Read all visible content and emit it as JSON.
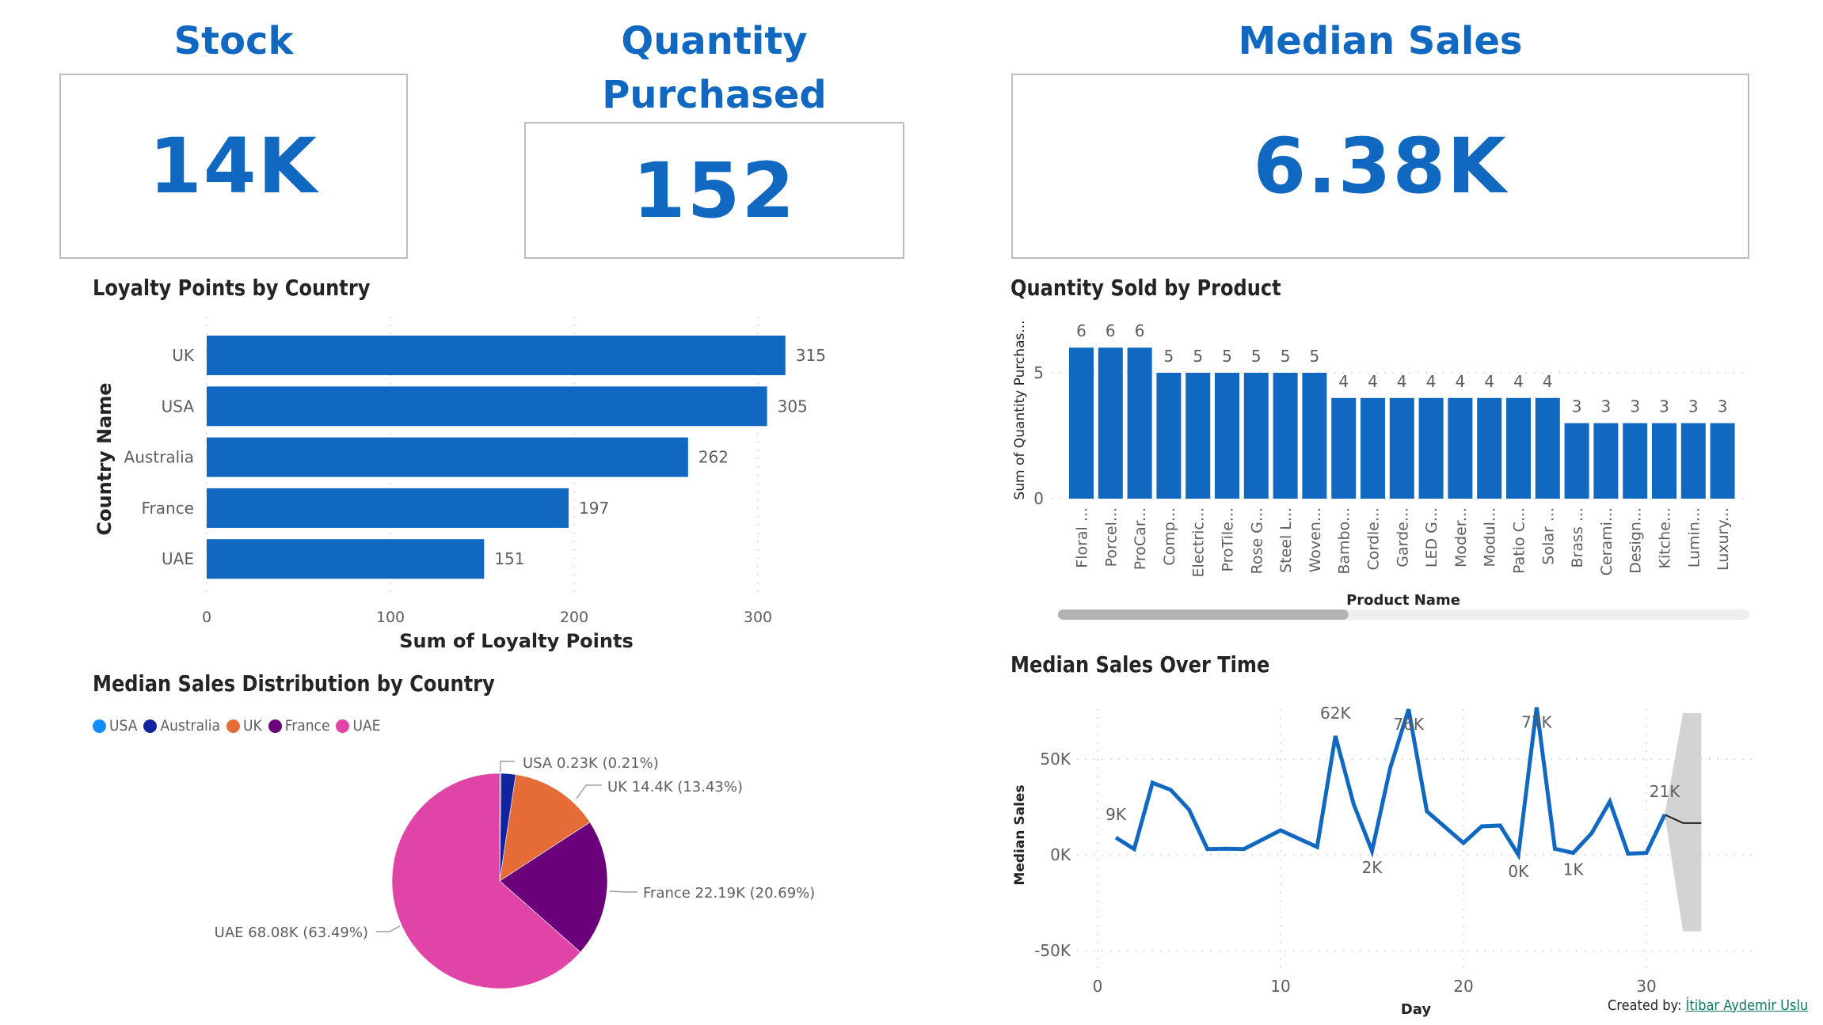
{
  "kpis": {
    "stock": {
      "title": "Stock",
      "value": "14K"
    },
    "quantity": {
      "title_line1": "Quantity",
      "title_line2": "Purchased",
      "value": "152"
    },
    "median_sales": {
      "title": "Median Sales",
      "value": "6.38K"
    }
  },
  "colors": {
    "accent": "#1168C0",
    "bar": "#1168C0",
    "text_dark": "#252423",
    "text_axis": "#605E5C",
    "gridline": "#C8C8C8",
    "forecast_band": "#D3D3D3",
    "link": "#117865"
  },
  "footer": {
    "prefix": "Created by:",
    "author": "İtibar Aydemir Uslu"
  },
  "chart_data": [
    {
      "id": "loyalty",
      "type": "bar",
      "orientation": "horizontal",
      "title": "Loyalty Points by Country",
      "categories": [
        "UK",
        "USA",
        "Australia",
        "France",
        "UAE"
      ],
      "values": [
        315,
        305,
        262,
        197,
        151
      ],
      "xlabel": "Sum of Loyalty Points",
      "ylabel": "Country Name",
      "xticks": [
        0,
        100,
        200,
        300
      ],
      "xlim": [
        0,
        340
      ],
      "grid": true
    },
    {
      "id": "quantity",
      "type": "bar",
      "orientation": "vertical",
      "title": "Quantity Sold by Product",
      "categories": [
        "Floral ...",
        "Porcel...",
        "ProCar...",
        "Comp...",
        "Electric...",
        "ProTile...",
        "Rose G...",
        "Steel L...",
        "Woven...",
        "Bambo...",
        "Cordle...",
        "Garde...",
        "LED G...",
        "Moder...",
        "Modul...",
        "Patio C...",
        "Solar ...",
        "Brass ...",
        "Cerami...",
        "Design...",
        "Kitche...",
        "Lumin...",
        "Luxury..."
      ],
      "values": [
        6,
        6,
        6,
        5,
        5,
        5,
        5,
        5,
        5,
        4,
        4,
        4,
        4,
        4,
        4,
        4,
        4,
        3,
        3,
        3,
        3,
        3,
        3
      ],
      "xlabel": "Product Name",
      "ylabel": "Sum of Quantity Purchas...",
      "yticks": [
        0,
        5
      ],
      "ylim": [
        0,
        6.5
      ],
      "grid": true,
      "scrollbar_thumb_fraction": 0.42
    },
    {
      "id": "pie",
      "type": "pie",
      "title": "Median Sales Distribution by Country",
      "legend_position": "top-left",
      "slices": [
        {
          "name": "USA",
          "value": 0.23,
          "percent": 0.21,
          "color": "#118DFF",
          "label": "USA 0.23K (0.21%)"
        },
        {
          "name": "Australia",
          "value": 2.34,
          "percent": 2.18,
          "color": "#12239E",
          "label": ""
        },
        {
          "name": "UK",
          "value": 14.4,
          "percent": 13.43,
          "color": "#E66C37",
          "label": "UK 14.4K (13.43%)"
        },
        {
          "name": "France",
          "value": 22.19,
          "percent": 20.69,
          "color": "#6B007B",
          "label": "France 22.19K (20.69%)"
        },
        {
          "name": "UAE",
          "value": 68.08,
          "percent": 63.49,
          "color": "#E044A7",
          "label": "UAE 68.08K (63.49%)"
        }
      ],
      "unit": "K"
    },
    {
      "id": "line",
      "type": "line",
      "title": "Median Sales Over Time",
      "xlabel": "Day",
      "ylabel": "Median Sales",
      "xticks": [
        0,
        10,
        20,
        30
      ],
      "yticks": [
        -50000,
        0,
        50000
      ],
      "ytick_labels": [
        "-50K",
        "0K",
        "50K"
      ],
      "xlim": [
        0,
        36
      ],
      "ylim": [
        -63000,
        95000
      ],
      "grid": true,
      "series": [
        {
          "name": "Median Sales",
          "x": [
            1,
            2,
            3,
            4,
            5,
            6,
            7,
            8,
            10,
            12,
            13,
            14,
            15,
            16,
            17,
            18,
            20,
            21,
            22,
            23,
            24,
            25,
            26,
            27,
            28,
            29,
            30,
            31
          ],
          "y": [
            9000,
            3000,
            37600,
            33900,
            23600,
            3000,
            3200,
            3000,
            12800,
            4100,
            62000,
            26400,
            2000,
            45500,
            76000,
            22700,
            6200,
            14900,
            15300,
            0,
            77000,
            3100,
            1000,
            11200,
            27800,
            600,
            1000,
            21000
          ]
        }
      ],
      "forecast": {
        "x": [
          31,
          32,
          33
        ],
        "y": [
          21000,
          16600,
          16600
        ],
        "upper": [
          21000,
          74000,
          74000
        ],
        "lower": [
          21000,
          -40000,
          -40000
        ]
      },
      "data_labels": [
        {
          "x": 1,
          "y": 9000,
          "text": "9K",
          "pos": "above"
        },
        {
          "x": 13,
          "y": 62000,
          "text": "62K",
          "pos": "above"
        },
        {
          "x": 15,
          "y": 2000,
          "text": "2K",
          "pos": "below"
        },
        {
          "x": 17,
          "y": 76000,
          "text": "76K",
          "pos": "on"
        },
        {
          "x": 23,
          "y": 0,
          "text": "0K",
          "pos": "below"
        },
        {
          "x": 24,
          "y": 77000,
          "text": "77K",
          "pos": "on"
        },
        {
          "x": 26,
          "y": 1000,
          "text": "1K",
          "pos": "below"
        },
        {
          "x": 31,
          "y": 21000,
          "text": "21K",
          "pos": "above"
        }
      ]
    }
  ]
}
